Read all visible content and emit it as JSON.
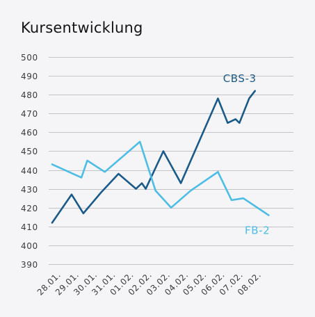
{
  "chart_data": {
    "type": "line",
    "title": "Kursentwicklung",
    "xlabel": "",
    "ylabel": "",
    "categories": [
      "28.01.",
      "29.01.",
      "30.01.",
      "31.01.",
      "01.02.",
      "02.02.",
      "03.02.",
      "04.02.",
      "05.02.",
      "06.02.",
      "07.02.",
      "08.02."
    ],
    "yticks": [
      390,
      400,
      410,
      420,
      430,
      440,
      450,
      460,
      470,
      480,
      490,
      500
    ],
    "ylim": [
      390,
      500
    ],
    "xlim": [
      0,
      12.3
    ],
    "grid": true,
    "legend": "inline labels at line ends",
    "series": [
      {
        "name": "CBS-3",
        "color": "#1a5a8a",
        "label_position": "top-right",
        "x": [
          0,
          1,
          1.6,
          2.5,
          3.4,
          4.3,
          4.6,
          4.8,
          5.7,
          6.6,
          8.5,
          9.0,
          9.4,
          9.6,
          10.1,
          10.4
        ],
        "y": [
          412,
          427,
          417,
          428,
          438,
          430,
          433,
          430,
          450,
          433,
          478,
          465,
          467,
          465,
          478,
          482
        ]
      },
      {
        "name": "FB-2",
        "color": "#4bbde6",
        "label_position": "bottom-right",
        "x": [
          0,
          1.5,
          1.8,
          2.7,
          4.5,
          5.3,
          6.1,
          7.1,
          8.5,
          9.2,
          9.8,
          11.1
        ],
        "y": [
          443,
          436,
          445,
          439,
          455,
          429,
          420,
          429,
          439,
          424,
          425,
          416
        ]
      }
    ]
  }
}
